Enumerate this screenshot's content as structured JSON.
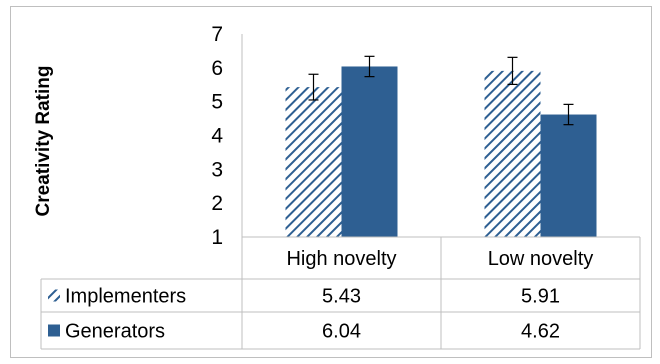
{
  "chart_data": {
    "type": "bar",
    "ylabel": "Creativity Rating",
    "ylim": [
      1,
      7
    ],
    "yticks": [
      "1",
      "2",
      "3",
      "4",
      "5",
      "6",
      "7"
    ],
    "categories": [
      "High novelty",
      "Low novelty"
    ],
    "series": [
      {
        "name": "Implementers",
        "values": [
          5.43,
          5.91
        ],
        "value_labels": [
          "5.43",
          "5.91"
        ],
        "error": [
          0.38,
          0.4
        ],
        "pattern": "diagonal-hatch",
        "color": "#2e5f92"
      },
      {
        "name": "Generators",
        "values": [
          6.04,
          4.62
        ],
        "value_labels": [
          "6.04",
          "4.62"
        ],
        "error": [
          0.3,
          0.3
        ],
        "pattern": "solid",
        "color": "#2e5f92"
      }
    ],
    "grid": false,
    "legend": "data-table"
  }
}
